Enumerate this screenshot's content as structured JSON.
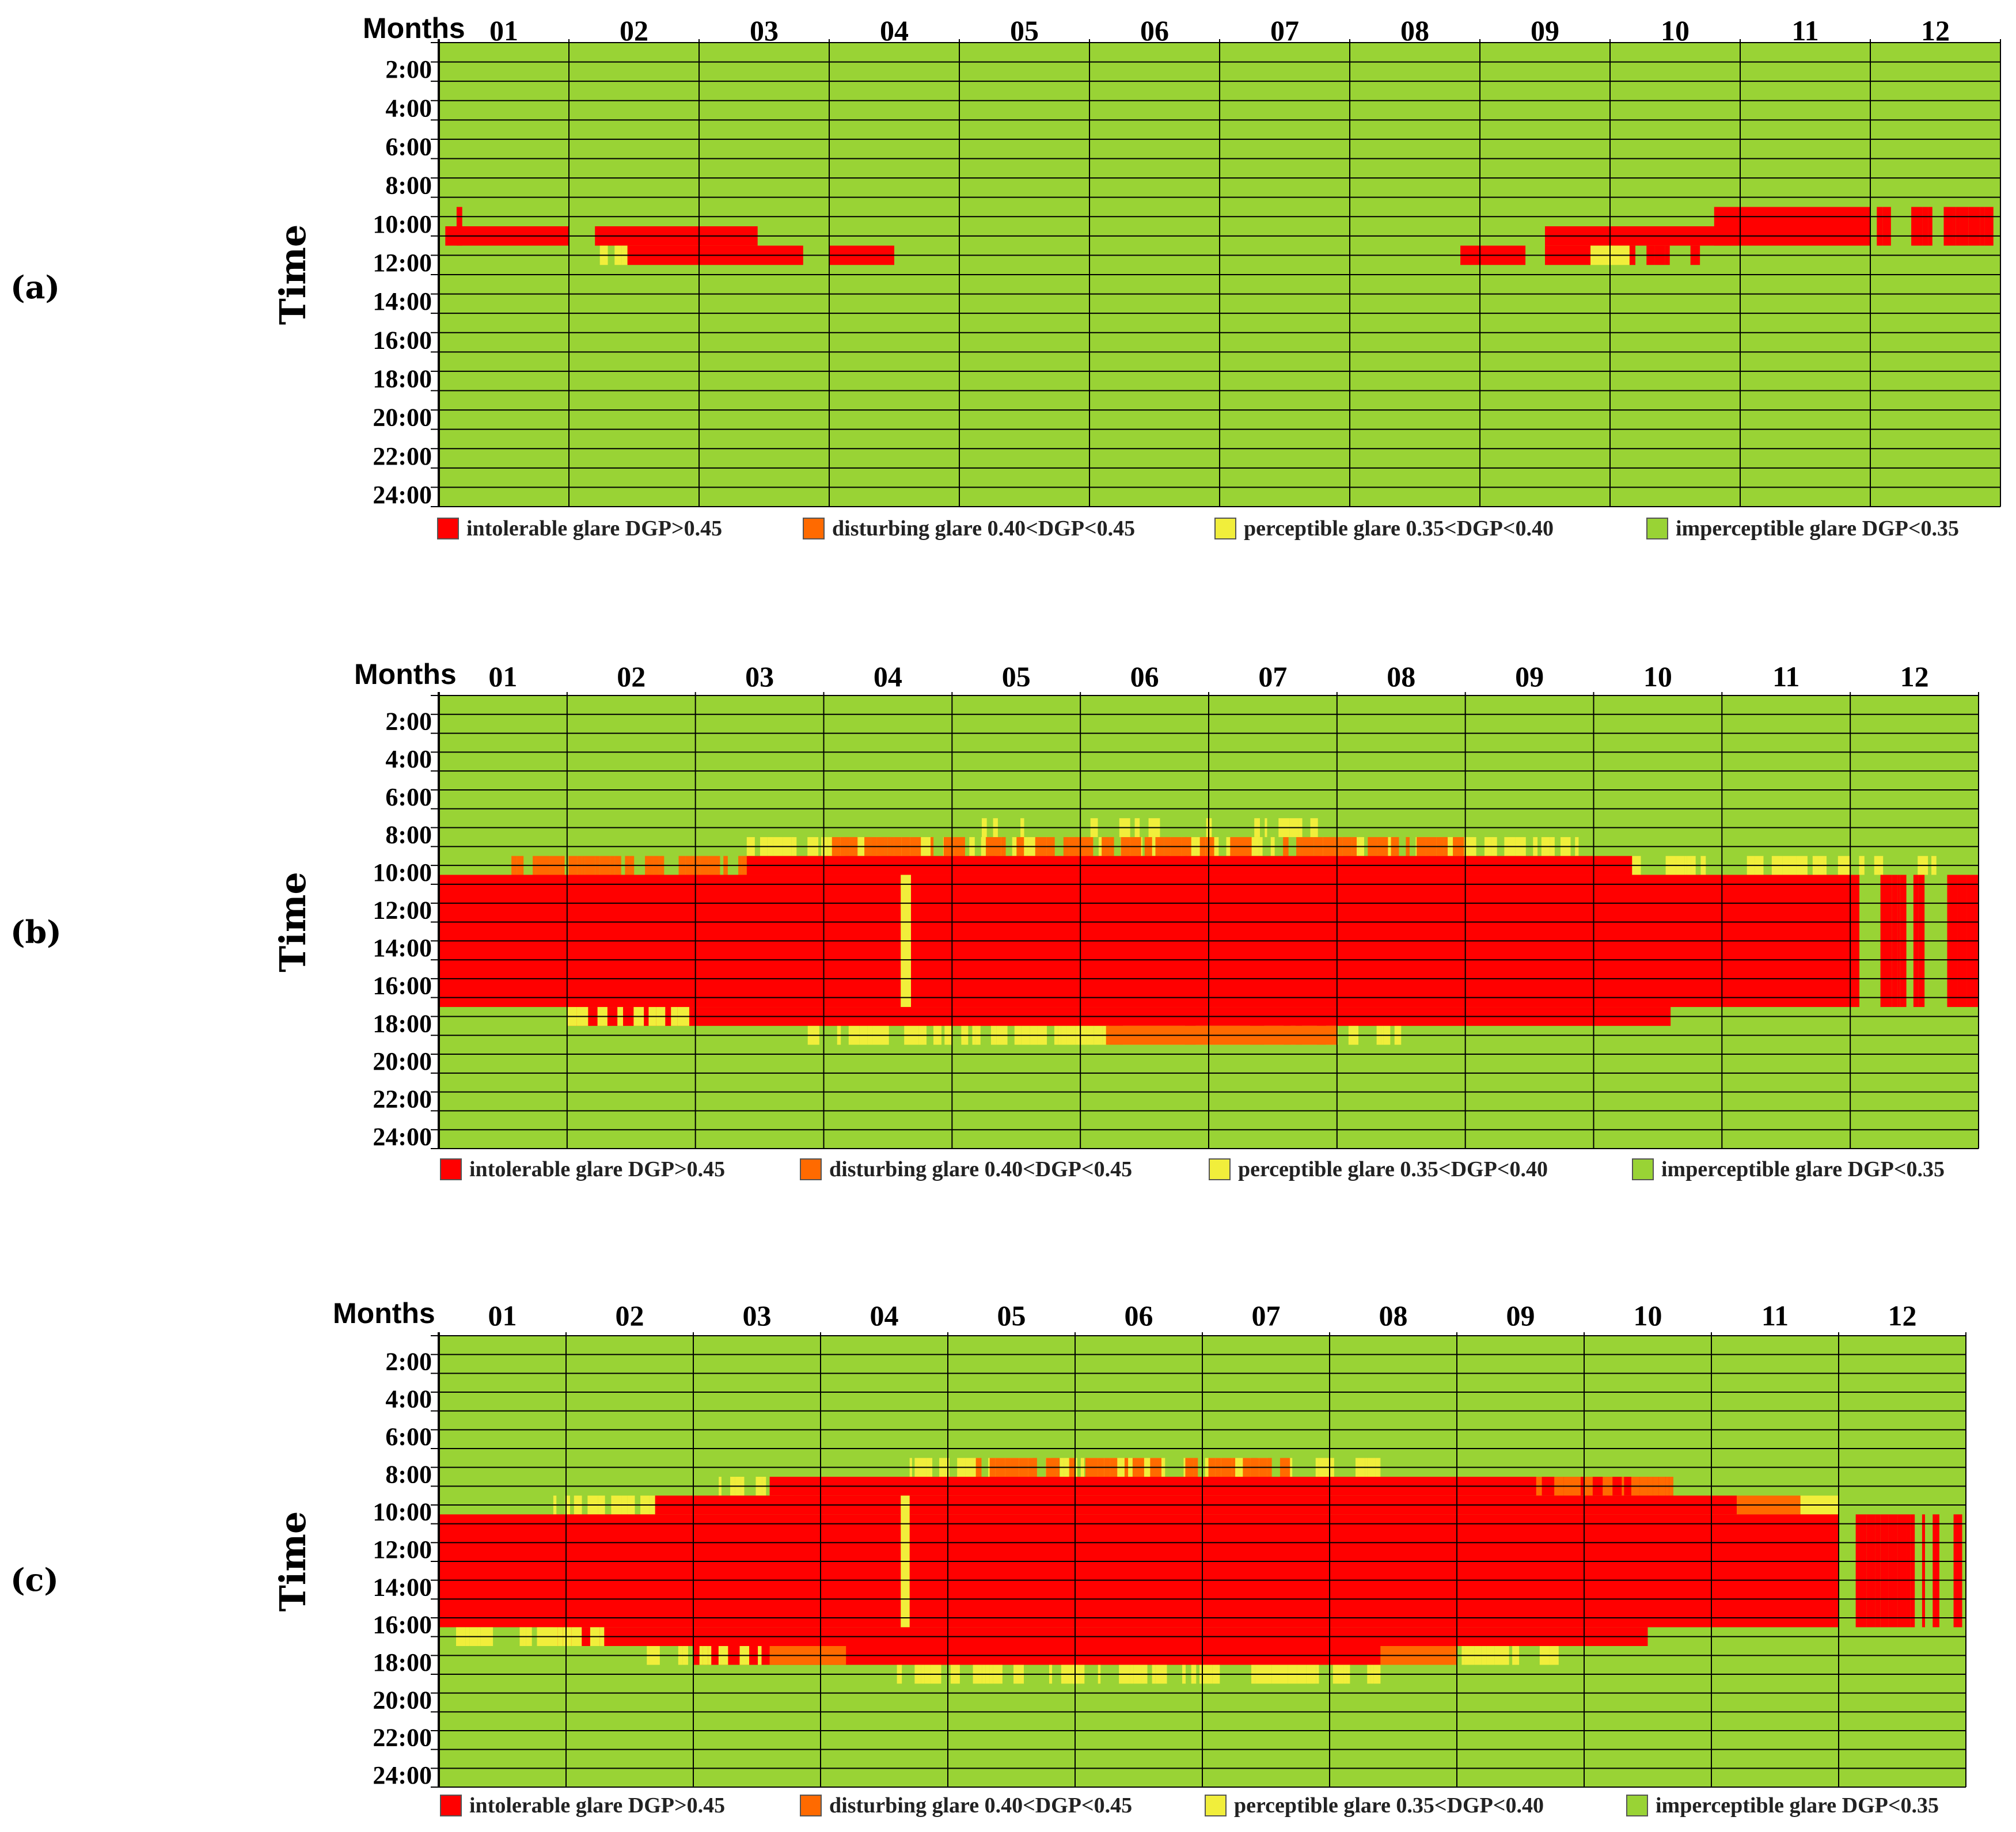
{
  "figure": {
    "panels": [
      "(a)",
      "(b)",
      "(c)"
    ]
  },
  "colors": {
    "intolerable": "#ff0000",
    "disturbing": "#ff6a00",
    "perceptible": "#f1ee3b",
    "imperceptible": "#99d335",
    "grid": "#000000"
  },
  "chart_data": [
    {
      "type": "heatmap",
      "panel": "(a)",
      "xlabel": "Months",
      "ylabel": "Time",
      "months": [
        "01",
        "02",
        "03",
        "04",
        "05",
        "06",
        "07",
        "08",
        "09",
        "10",
        "11",
        "12"
      ],
      "time_ticks": [
        "2:00",
        "4:00",
        "6:00",
        "8:00",
        "10:00",
        "12:00",
        "14:00",
        "16:00",
        "18:00",
        "20:00",
        "22:00",
        "24:00"
      ],
      "hour_range": [
        0,
        24
      ],
      "legend": [
        {
          "key": "intolerable",
          "label": "intolerable glare DGP>0.45"
        },
        {
          "key": "disturbing",
          "label": "disturbing glare 0.40<DGP<0.45"
        },
        {
          "key": "perceptible",
          "label": "perceptible glare 0.35<DGP<0.40"
        },
        {
          "key": "imperceptible",
          "label": "imperceptible glare DGP<0.35"
        }
      ],
      "background": "imperceptible",
      "glare_bands": [
        {
          "class": "intolerable",
          "month_start": 0.02,
          "month_end": 0.2,
          "hour_start": 8.5,
          "hour_end": 10.5,
          "pattern": "striped"
        },
        {
          "class": "intolerable",
          "month_start": 0.05,
          "month_end": 1.0,
          "hour_start": 9.5,
          "hour_end": 10.5
        },
        {
          "class": "intolerable",
          "month_start": 1.2,
          "month_end": 2.45,
          "hour_start": 9.5,
          "hour_end": 10.5
        },
        {
          "class": "perceptible",
          "month_start": 1.2,
          "month_end": 1.45,
          "hour_start": 10.5,
          "hour_end": 11.5,
          "pattern": "striped"
        },
        {
          "class": "intolerable",
          "month_start": 1.45,
          "month_end": 2.8,
          "hour_start": 10.5,
          "hour_end": 11.5
        },
        {
          "class": "intolerable",
          "month_start": 3.0,
          "month_end": 3.5,
          "hour_start": 10.5,
          "hour_end": 11.5
        },
        {
          "class": "intolerable",
          "month_start": 7.85,
          "month_end": 8.35,
          "hour_start": 10.5,
          "hour_end": 11.5
        },
        {
          "class": "intolerable",
          "month_start": 8.5,
          "month_end": 10.0,
          "hour_start": 9.5,
          "hour_end": 10.5
        },
        {
          "class": "intolerable",
          "month_start": 8.5,
          "month_end": 8.85,
          "hour_start": 10.5,
          "hour_end": 11.5
        },
        {
          "class": "perceptible",
          "month_start": 8.85,
          "month_end": 9.15,
          "hour_start": 10.5,
          "hour_end": 11.5
        },
        {
          "class": "intolerable",
          "month_start": 9.15,
          "month_end": 9.7,
          "hour_start": 10.5,
          "hour_end": 11.5,
          "pattern": "striped"
        },
        {
          "class": "intolerable",
          "month_start": 9.8,
          "month_end": 11.0,
          "hour_start": 8.5,
          "hour_end": 10.5
        },
        {
          "class": "intolerable",
          "month_start": 11.05,
          "month_end": 12.0,
          "hour_start": 8.5,
          "hour_end": 10.5,
          "pattern": "striped"
        }
      ]
    },
    {
      "type": "heatmap",
      "panel": "(b)",
      "xlabel": "Months",
      "ylabel": "Time",
      "months": [
        "01",
        "02",
        "03",
        "04",
        "05",
        "06",
        "07",
        "08",
        "09",
        "10",
        "11",
        "12"
      ],
      "time_ticks": [
        "2:00",
        "4:00",
        "6:00",
        "8:00",
        "10:00",
        "12:00",
        "14:00",
        "16:00",
        "18:00",
        "20:00",
        "22:00",
        "24:00"
      ],
      "hour_range": [
        0,
        24
      ],
      "legend": [
        {
          "key": "intolerable",
          "label": "intolerable glare DGP>0.45"
        },
        {
          "key": "disturbing",
          "label": "disturbing glare 0.40<DGP<0.45"
        },
        {
          "key": "perceptible",
          "label": "perceptible glare 0.35<DGP<0.40"
        },
        {
          "key": "imperceptible",
          "label": "imperceptible glare DGP<0.35"
        }
      ],
      "background": "imperceptible",
      "glare_bands": [
        {
          "class": "perceptible",
          "month_start": 2.4,
          "month_end": 8.9,
          "hour_start": 7.5,
          "hour_end": 8.5,
          "pattern": "striped"
        },
        {
          "class": "disturbing",
          "month_start": 3.0,
          "month_end": 8.0,
          "hour_start": 7.5,
          "hour_end": 8.5,
          "pattern": "striped"
        },
        {
          "class": "perceptible",
          "month_start": 4.0,
          "month_end": 7.0,
          "hour_start": 6.5,
          "hour_end": 7.5,
          "pattern": "sparse"
        },
        {
          "class": "disturbing",
          "month_start": 0.5,
          "month_end": 2.4,
          "hour_start": 8.5,
          "hour_end": 9.5,
          "pattern": "striped"
        },
        {
          "class": "intolerable",
          "month_start": 2.4,
          "month_end": 9.3,
          "hour_start": 8.5,
          "hour_end": 9.5
        },
        {
          "class": "perceptible",
          "month_start": 9.3,
          "month_end": 11.0,
          "hour_start": 8.5,
          "hour_end": 9.5,
          "pattern": "striped"
        },
        {
          "class": "perceptible",
          "month_start": 11.0,
          "month_end": 12.0,
          "hour_start": 8.5,
          "hour_end": 9.5,
          "pattern": "sparse"
        },
        {
          "class": "intolerable",
          "month_start": 0.0,
          "month_end": 11.0,
          "hour_start": 9.5,
          "hour_end": 16.5
        },
        {
          "class": "intolerable",
          "month_start": 11.0,
          "month_end": 12.0,
          "hour_start": 9.5,
          "hour_end": 16.5,
          "pattern": "striped"
        },
        {
          "class": "perceptible",
          "month_start": 3.6,
          "month_end": 3.68,
          "hour_start": 9.5,
          "hour_end": 16.5
        },
        {
          "class": "intolerable",
          "month_start": 1.0,
          "month_end": 9.6,
          "hour_start": 16.5,
          "hour_end": 17.5
        },
        {
          "class": "perceptible",
          "month_start": 1.0,
          "month_end": 2.0,
          "hour_start": 16.5,
          "hour_end": 17.5,
          "pattern": "striped"
        },
        {
          "class": "perceptible",
          "month_start": 2.8,
          "month_end": 7.5,
          "hour_start": 17.5,
          "hour_end": 18.5,
          "pattern": "striped"
        },
        {
          "class": "disturbing",
          "month_start": 5.2,
          "month_end": 7.0,
          "hour_start": 17.5,
          "hour_end": 18.5
        }
      ]
    },
    {
      "type": "heatmap",
      "panel": "(c)",
      "xlabel": "Months",
      "ylabel": "Time",
      "months": [
        "01",
        "02",
        "03",
        "04",
        "05",
        "06",
        "07",
        "08",
        "09",
        "10",
        "11",
        "12"
      ],
      "time_ticks": [
        "2:00",
        "4:00",
        "6:00",
        "8:00",
        "10:00",
        "12:00",
        "14:00",
        "16:00",
        "18:00",
        "20:00",
        "22:00",
        "24:00"
      ],
      "hour_range": [
        0,
        24
      ],
      "legend": [
        {
          "key": "intolerable",
          "label": "intolerable glare DGP>0.45"
        },
        {
          "key": "disturbing",
          "label": "disturbing glare 0.40<DGP<0.45"
        },
        {
          "key": "perceptible",
          "label": "perceptible glare 0.35<DGP<0.40"
        },
        {
          "key": "imperceptible",
          "label": "imperceptible glare DGP<0.35"
        }
      ],
      "background": "imperceptible",
      "glare_bands": [
        {
          "class": "perceptible",
          "month_start": 3.7,
          "month_end": 7.4,
          "hour_start": 6.5,
          "hour_end": 7.5,
          "pattern": "striped"
        },
        {
          "class": "disturbing",
          "month_start": 4.2,
          "month_end": 6.7,
          "hour_start": 6.5,
          "hour_end": 7.5,
          "pattern": "striped"
        },
        {
          "class": "perceptible",
          "month_start": 2.2,
          "month_end": 3.0,
          "hour_start": 7.5,
          "hour_end": 8.5,
          "pattern": "striped"
        },
        {
          "class": "intolerable",
          "month_start": 2.6,
          "month_end": 9.7,
          "hour_start": 7.5,
          "hour_end": 8.5
        },
        {
          "class": "disturbing",
          "month_start": 8.6,
          "month_end": 9.7,
          "hour_start": 7.5,
          "hour_end": 8.5,
          "pattern": "striped"
        },
        {
          "class": "perceptible",
          "month_start": 0.9,
          "month_end": 1.7,
          "hour_start": 8.5,
          "hour_end": 9.5,
          "pattern": "striped"
        },
        {
          "class": "intolerable",
          "month_start": 1.7,
          "month_end": 10.2,
          "hour_start": 8.5,
          "hour_end": 9.5
        },
        {
          "class": "disturbing",
          "month_start": 10.2,
          "month_end": 10.7,
          "hour_start": 8.5,
          "hour_end": 9.5
        },
        {
          "class": "perceptible",
          "month_start": 10.7,
          "month_end": 11.0,
          "hour_start": 8.5,
          "hour_end": 9.5
        },
        {
          "class": "intolerable",
          "month_start": 0.0,
          "month_end": 11.0,
          "hour_start": 9.5,
          "hour_end": 15.5
        },
        {
          "class": "intolerable",
          "month_start": 11.0,
          "month_end": 12.0,
          "hour_start": 9.5,
          "hour_end": 15.5,
          "pattern": "striped"
        },
        {
          "class": "perceptible",
          "month_start": 3.63,
          "month_end": 3.7,
          "hour_start": 8.5,
          "hour_end": 17.5
        },
        {
          "class": "intolerable",
          "month_start": 0.9,
          "month_end": 9.5,
          "hour_start": 15.5,
          "hour_end": 16.5
        },
        {
          "class": "perceptible",
          "month_start": 0.0,
          "month_end": 1.3,
          "hour_start": 15.5,
          "hour_end": 16.5,
          "pattern": "striped"
        },
        {
          "class": "intolerable",
          "month_start": 2.0,
          "month_end": 7.4,
          "hour_start": 16.5,
          "hour_end": 17.5
        },
        {
          "class": "perceptible",
          "month_start": 1.6,
          "month_end": 2.6,
          "hour_start": 16.5,
          "hour_end": 17.5,
          "pattern": "striped"
        },
        {
          "class": "disturbing",
          "month_start": 2.6,
          "month_end": 3.2,
          "hour_start": 16.5,
          "hour_end": 17.5
        },
        {
          "class": "disturbing",
          "month_start": 7.4,
          "month_end": 8.0,
          "hour_start": 16.5,
          "hour_end": 17.5
        },
        {
          "class": "perceptible",
          "month_start": 8.0,
          "month_end": 8.8,
          "hour_start": 16.5,
          "hour_end": 17.5,
          "pattern": "striped"
        },
        {
          "class": "perceptible",
          "month_start": 3.6,
          "month_end": 7.4,
          "hour_start": 17.5,
          "hour_end": 18.5,
          "pattern": "striped"
        }
      ]
    }
  ]
}
